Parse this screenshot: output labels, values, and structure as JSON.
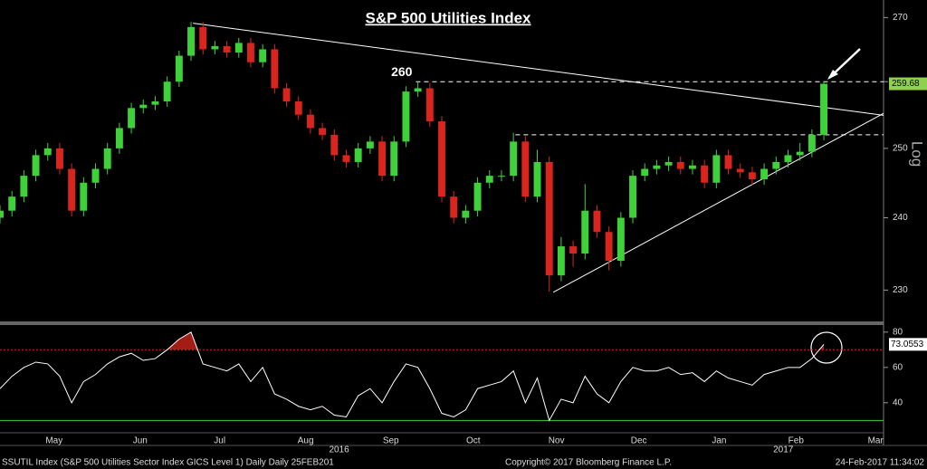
{
  "chart_data": [
    {
      "type": "candlestick",
      "title": "S&P 500 Utilities Index",
      "y_label": "Log",
      "log_scale": true,
      "up_color": "#3fd13a",
      "down_color": "#d9251d",
      "x": [
        0,
        3,
        6,
        9,
        12,
        15,
        18,
        21,
        24,
        27,
        30,
        33,
        36,
        39,
        42,
        45,
        48,
        51,
        54,
        57,
        60,
        63,
        66,
        69,
        72,
        75,
        78,
        81,
        84,
        87,
        90,
        93,
        96,
        99,
        102,
        105,
        108,
        111,
        114,
        117,
        120,
        123,
        126,
        129,
        132,
        135,
        138,
        141,
        144,
        147,
        150,
        153,
        156,
        159,
        162,
        165,
        168,
        171,
        174,
        177,
        180,
        183,
        186,
        189,
        192,
        195,
        198,
        201,
        204,
        207
      ],
      "open": [
        240,
        241,
        243,
        246,
        249,
        250,
        247,
        241,
        245,
        247,
        250,
        253,
        256,
        256.5,
        257,
        260,
        264,
        268.5,
        265,
        265.5,
        264.5,
        266,
        263,
        265,
        259,
        257,
        255,
        253,
        252,
        249,
        248,
        250,
        251,
        246,
        251,
        258.5,
        259,
        254,
        243,
        240,
        241,
        245,
        246,
        246,
        251,
        243,
        248,
        232,
        236,
        235,
        241,
        238,
        234,
        240,
        246,
        247,
        247.5,
        248,
        247,
        247.5,
        245,
        249,
        247,
        246.5,
        245.5,
        247,
        248,
        249,
        249.5,
        252
      ],
      "high": [
        241.8,
        243.8,
        246.8,
        249.8,
        250.8,
        250.8,
        247.8,
        245.8,
        247.8,
        250.8,
        253.8,
        256.8,
        257.3,
        257.8,
        260.8,
        264.8,
        269.3,
        269.3,
        266.3,
        266.3,
        266.8,
        266.8,
        265.8,
        265.8,
        259.8,
        257.8,
        255.8,
        253.8,
        252.8,
        249.8,
        250.8,
        251.8,
        251.8,
        251.8,
        259.3,
        260,
        259.8,
        254.8,
        243.8,
        241.8,
        245.8,
        246.8,
        246.8,
        252.3,
        251.8,
        249.8,
        248.8,
        237.3,
        236.8,
        244.8,
        241.8,
        238.8,
        240.8,
        246.8,
        247.8,
        248.3,
        248.8,
        248.8,
        248.3,
        248.3,
        249.8,
        249.8,
        247.8,
        247.3,
        247.8,
        248.8,
        249.8,
        250.8,
        252.8,
        260
      ],
      "low": [
        239.2,
        240.2,
        242.2,
        245.2,
        248.2,
        246.2,
        240.2,
        240.2,
        244.2,
        246.2,
        249.2,
        252.2,
        255.2,
        255.7,
        256.2,
        259.2,
        263.2,
        264.2,
        264.2,
        263.7,
        263.7,
        262.2,
        262.2,
        258.2,
        256.2,
        254.2,
        252.2,
        251.2,
        248.2,
        247.2,
        247.2,
        249.2,
        245.2,
        245.2,
        250.2,
        257.7,
        253.2,
        242.2,
        239.2,
        239.2,
        240.2,
        244.2,
        245.2,
        245.2,
        242.2,
        242.2,
        229.8,
        231.2,
        233.2,
        234.2,
        237.2,
        232.7,
        233.2,
        239.2,
        245.2,
        246.2,
        246.7,
        246.2,
        246.2,
        244.2,
        244.2,
        246.2,
        245.7,
        244.7,
        244.7,
        246.2,
        247.2,
        248.2,
        248.7,
        251.2
      ],
      "close": [
        241,
        243,
        246,
        249,
        250,
        247,
        241,
        245,
        247,
        250,
        253,
        256,
        256.5,
        257,
        260,
        264,
        268.5,
        265,
        265.5,
        264.5,
        266,
        263,
        265,
        259,
        257,
        255,
        253,
        252,
        249,
        248,
        250,
        251,
        246,
        251,
        258.5,
        259,
        254,
        243,
        240,
        241,
        245,
        246,
        246,
        251,
        243,
        248,
        232,
        236,
        235,
        241,
        238,
        234,
        240,
        246,
        247,
        247.5,
        248,
        247,
        247.5,
        245,
        249,
        247,
        246.5,
        245.5,
        247,
        248,
        249,
        249.5,
        252,
        259.68
      ],
      "xlim": [
        0,
        222
      ],
      "ylim": [
        225.8,
        272.8
      ],
      "yticks": [
        230,
        240,
        250,
        260,
        270
      ],
      "xticks": [
        {
          "value": 13.6,
          "label": "May"
        },
        {
          "value": 35.2,
          "label": "Jun"
        },
        {
          "value": 55.2,
          "label": "Jul"
        },
        {
          "value": 76.8,
          "label": "Aug"
        },
        {
          "value": 98.2,
          "label": "Sep"
        },
        {
          "value": 118.9,
          "label": "Oct"
        },
        {
          "value": 139.8,
          "label": "Nov"
        },
        {
          "value": 160.5,
          "label": "Dec"
        },
        {
          "value": 180.7,
          "label": "Jan"
        },
        {
          "value": 200,
          "label": "Feb"
        },
        {
          "value": 220,
          "label": "Mar"
        }
      ],
      "year_labels": [
        {
          "value": 85.2,
          "label": "2016"
        },
        {
          "value": 196.8,
          "label": "2017"
        }
      ],
      "levels": [
        {
          "value": 260,
          "x0": 104.5
        },
        {
          "value": 252,
          "x0": 129.5
        }
      ],
      "trend_lines": [
        {
          "x": [
            48.5,
            222
          ],
          "y": [
            269.1,
            254.9
          ]
        },
        {
          "x": [
            139,
            222
          ],
          "y": [
            229.7,
            255.2
          ]
        }
      ]
    },
    {
      "type": "line",
      "color": "#ffffff",
      "values": [
        48,
        55,
        60,
        63,
        62,
        55,
        40,
        52,
        56,
        62,
        66,
        68,
        64,
        65,
        70,
        76,
        80,
        62,
        60,
        58,
        62,
        52,
        60,
        45,
        42,
        38,
        36,
        38,
        33,
        32,
        44,
        48,
        40,
        52,
        62,
        60,
        48,
        34,
        32,
        36,
        48,
        50,
        52,
        58,
        40,
        54,
        30,
        42,
        40,
        55,
        45,
        40,
        52,
        60,
        58,
        58,
        60,
        56,
        57,
        52,
        58,
        54,
        52,
        50,
        56,
        58,
        60,
        60,
        65,
        73.0553
      ],
      "ylim": [
        23,
        84
      ],
      "yticks": [
        40,
        60,
        80
      ],
      "overbought": 70,
      "oversold": 30,
      "overbought_color": "#d9251d",
      "oversold_color": "#3fd13a"
    }
  ],
  "footer": {
    "left": "SSUTIL Index (S&P 500 Utilities Sector Index GICS Level 1) Daily  Daily 25FEB201",
    "center": "Copyright© 2017 Bloomberg Finance L.P.",
    "right": "24-Feb-2017 11:34:02"
  }
}
